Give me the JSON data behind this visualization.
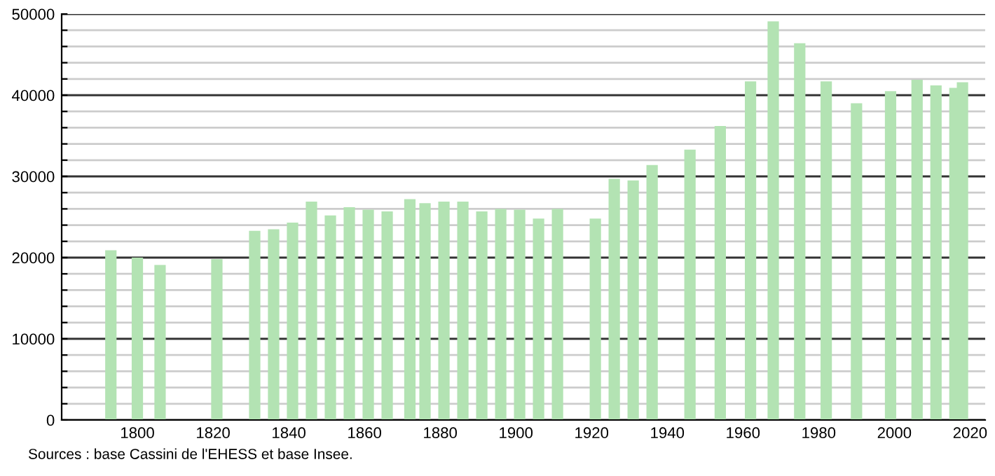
{
  "chart_data": {
    "type": "bar",
    "color": "#b3e3b3",
    "x": [
      1793,
      1800,
      1806,
      1821,
      1831,
      1836,
      1841,
      1846,
      1851,
      1856,
      1861,
      1866,
      1872,
      1876,
      1881,
      1886,
      1891,
      1896,
      1901,
      1906,
      1911,
      1921,
      1926,
      1931,
      1936,
      1946,
      1954,
      1962,
      1968,
      1975,
      1982,
      1990,
      1999,
      2006,
      2011,
      2016,
      2018
    ],
    "values": [
      20900,
      20000,
      19100,
      19800,
      23300,
      23500,
      24300,
      26900,
      25200,
      26200,
      25900,
      25700,
      27200,
      26700,
      26900,
      26900,
      25700,
      26000,
      25900,
      24800,
      26000,
      24800,
      29700,
      29500,
      31400,
      33300,
      36200,
      41700,
      49100,
      46400,
      41700,
      39000,
      40500,
      41900,
      41200,
      40900,
      41600
    ],
    "xlim": [
      1780,
      2024
    ],
    "xticks": [
      1800,
      1820,
      1840,
      1860,
      1880,
      1900,
      1920,
      1940,
      1960,
      1980,
      2000,
      2020
    ],
    "ylim": [
      0,
      50000
    ],
    "yticks": [
      0,
      {
        "value": 2000,
        "label": null
      },
      {
        "value": 4000,
        "label": null
      },
      {
        "value": 6000,
        "label": null
      },
      {
        "value": 8000,
        "label": null
      },
      10000,
      {
        "value": 12000,
        "label": null
      },
      {
        "value": 14000,
        "label": null
      },
      {
        "value": 16000,
        "label": null
      },
      {
        "value": 18000,
        "label": null
      },
      20000,
      {
        "value": 22000,
        "label": null
      },
      {
        "value": 24000,
        "label": null
      },
      {
        "value": 26000,
        "label": null
      },
      {
        "value": 28000,
        "label": null
      },
      30000,
      {
        "value": 32000,
        "label": null
      },
      {
        "value": 34000,
        "label": null
      },
      {
        "value": 36000,
        "label": null
      },
      {
        "value": 38000,
        "label": null
      },
      40000,
      {
        "value": 42000,
        "label": null
      },
      {
        "value": 44000,
        "label": null
      },
      {
        "value": 46000,
        "label": null
      },
      {
        "value": 48000,
        "label": null
      },
      50000
    ],
    "grid": "y",
    "annotations": [
      "Sources : base Cassini de l'EHESS et base Insee."
    ]
  }
}
